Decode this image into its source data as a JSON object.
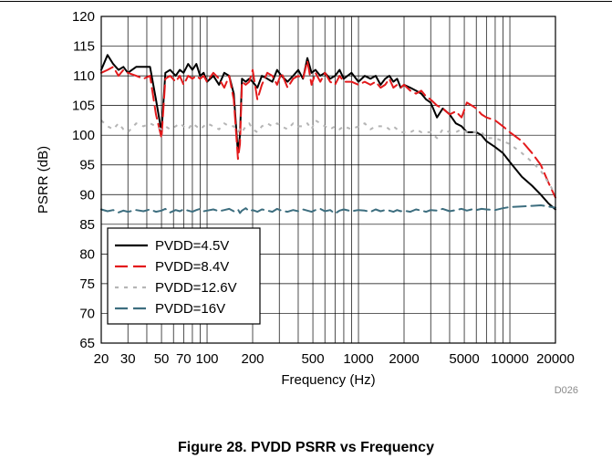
{
  "figure_code": "D026",
  "caption": "Figure 28. PVDD PSRR vs Frequency",
  "chart_data": {
    "type": "line",
    "title": "",
    "xlabel": "Frequency (Hz)",
    "ylabel": "PSRR (dB)",
    "x_scale": "log",
    "xlim": [
      20,
      20000
    ],
    "ylim": [
      65,
      120
    ],
    "grid": true,
    "legend_position": "bottom-left",
    "x_ticks": [
      20,
      30,
      50,
      70,
      100,
      200,
      500,
      1000,
      2000,
      5000,
      10000,
      20000
    ],
    "x_tick_labels": [
      "20",
      "30",
      "50",
      "70",
      "100",
      "200",
      "500",
      "1000",
      "2000",
      "5000",
      "10000",
      "20000"
    ],
    "y_ticks": [
      65,
      70,
      75,
      80,
      85,
      90,
      95,
      100,
      105,
      110,
      115,
      120
    ],
    "series": [
      {
        "name": "PVDD=4.5V",
        "color": "#000000",
        "style": "solid",
        "x": [
          20,
          22,
          24,
          26,
          28,
          30,
          34,
          38,
          42,
          46,
          50,
          53,
          57,
          62,
          66,
          70,
          75,
          80,
          85,
          90,
          95,
          100,
          110,
          120,
          130,
          140,
          150,
          160,
          165,
          170,
          180,
          190,
          200,
          215,
          230,
          250,
          270,
          290,
          310,
          340,
          370,
          400,
          430,
          460,
          490,
          520,
          560,
          600,
          650,
          700,
          750,
          800,
          900,
          1000,
          1100,
          1200,
          1300,
          1400,
          1500,
          1600,
          1700,
          1800,
          1900,
          2000,
          2200,
          2400,
          2600,
          2800,
          3000,
          3300,
          3600,
          4000,
          4400,
          4800,
          5200,
          5600,
          6000,
          6500,
          7000,
          8000,
          9000,
          10000,
          12000,
          14000,
          16000,
          18000,
          20000
        ],
        "values": [
          111,
          113.5,
          112,
          111,
          111.5,
          110.5,
          111.5,
          111.5,
          111.5,
          106,
          100.5,
          110.5,
          111,
          110,
          111,
          110.5,
          112,
          111,
          112,
          110,
          110.5,
          109,
          110,
          108.5,
          110.5,
          110,
          107,
          97,
          100,
          109.5,
          109,
          109.5,
          109,
          108,
          110,
          109.5,
          109,
          111,
          110,
          109,
          110,
          111,
          109.5,
          113,
          110.5,
          111,
          110,
          110.5,
          109.5,
          110,
          111,
          109.5,
          110.5,
          109,
          110,
          109.5,
          110,
          108.5,
          109.5,
          110,
          109,
          109.5,
          108,
          108.5,
          108,
          107.5,
          107,
          106,
          105.5,
          103,
          104.5,
          103.5,
          102,
          101.5,
          100.5,
          100.5,
          100.5,
          100,
          99,
          98,
          97,
          95.5,
          93,
          91.5,
          90,
          88.5,
          87.5
        ]
      },
      {
        "name": "PVDD=8.4V",
        "color": "#e31a1c",
        "style": "dashed",
        "x": [
          20,
          22,
          24,
          26,
          28,
          30,
          34,
          38,
          42,
          46,
          50,
          53,
          57,
          62,
          66,
          70,
          75,
          80,
          85,
          90,
          95,
          100,
          110,
          120,
          130,
          140,
          150,
          160,
          165,
          170,
          180,
          190,
          200,
          215,
          230,
          250,
          270,
          290,
          310,
          340,
          370,
          400,
          430,
          460,
          490,
          520,
          560,
          600,
          650,
          700,
          750,
          800,
          900,
          1000,
          1100,
          1200,
          1300,
          1400,
          1500,
          1600,
          1700,
          1800,
          1900,
          2000,
          2200,
          2400,
          2600,
          2800,
          3000,
          3300,
          3600,
          4000,
          4400,
          4800,
          5200,
          5600,
          6000,
          6500,
          7000,
          8000,
          9000,
          10000,
          12000,
          14000,
          16000,
          18000,
          20000
        ],
        "values": [
          110.5,
          111,
          111.5,
          110,
          111,
          110.5,
          110,
          109.5,
          110,
          103.5,
          99.5,
          109.5,
          110,
          109,
          110,
          108.5,
          110,
          109.5,
          110,
          109.5,
          110,
          109,
          110.5,
          109.5,
          108,
          110,
          106,
          96,
          98.5,
          109,
          108.5,
          109,
          111,
          106,
          108.5,
          110.5,
          110,
          108.5,
          110.5,
          108,
          109.5,
          110,
          109.5,
          112.5,
          108.5,
          110.5,
          109,
          110.5,
          109,
          108.5,
          110,
          109,
          109,
          108.5,
          109,
          108.5,
          109,
          108,
          108.5,
          109.5,
          108,
          108.5,
          108,
          108.5,
          107.5,
          107,
          107.5,
          106.5,
          106,
          105,
          104.5,
          103.5,
          104,
          103,
          105.5,
          105,
          104.5,
          103.5,
          103,
          102.5,
          101.5,
          100.5,
          99,
          97,
          95,
          92,
          89.5
        ]
      },
      {
        "name": "PVDD=12.6V",
        "color": "#b5b5b5",
        "style": "dotted",
        "x": [
          20,
          22,
          24,
          26,
          28,
          30,
          34,
          38,
          42,
          46,
          50,
          53,
          57,
          62,
          66,
          70,
          75,
          80,
          85,
          90,
          95,
          100,
          110,
          120,
          130,
          140,
          150,
          160,
          165,
          170,
          180,
          190,
          200,
          215,
          230,
          250,
          270,
          290,
          310,
          340,
          370,
          400,
          430,
          460,
          490,
          520,
          560,
          600,
          650,
          700,
          750,
          800,
          900,
          1000,
          1100,
          1200,
          1300,
          1400,
          1500,
          1600,
          1700,
          1800,
          1900,
          2000,
          2200,
          2400,
          2600,
          2800,
          3000,
          3300,
          3600,
          4000,
          4400,
          4800,
          5200,
          5600,
          6000,
          6500,
          7000,
          8000,
          9000,
          10000,
          12000,
          14000,
          16000,
          18000,
          20000
        ],
        "values": [
          102.5,
          101.5,
          101,
          102,
          101,
          100.5,
          102,
          101.5,
          102,
          101.5,
          101,
          101.5,
          101,
          101.5,
          102,
          101.5,
          101,
          102,
          101.5,
          101,
          101.5,
          102,
          101.5,
          101,
          102,
          101.5,
          101.5,
          100.5,
          101,
          100.5,
          101.5,
          102,
          101,
          100.5,
          101.5,
          102,
          101.5,
          102,
          101.5,
          101,
          102,
          101.5,
          101.5,
          102,
          101,
          102.5,
          102,
          101.5,
          101,
          101.5,
          101,
          101.5,
          101,
          101.5,
          102,
          101,
          101.5,
          101.5,
          101.5,
          101,
          101.5,
          101,
          100.5,
          100.5,
          100.5,
          101,
          100.5,
          100.5,
          100.5,
          99.5,
          101,
          100.5,
          100.5,
          101,
          100.5,
          100.5,
          100.5,
          100.5,
          99.5,
          99.5,
          99,
          98.5,
          97,
          95.5,
          94,
          92,
          90
        ]
      },
      {
        "name": "PVDD=16V",
        "color": "#3d6e7f",
        "style": "dashed",
        "x": [
          20,
          22,
          24,
          26,
          28,
          30,
          34,
          38,
          42,
          46,
          50,
          53,
          57,
          62,
          66,
          70,
          75,
          80,
          85,
          90,
          95,
          100,
          110,
          120,
          130,
          140,
          150,
          160,
          165,
          170,
          180,
          190,
          200,
          215,
          230,
          250,
          270,
          290,
          310,
          340,
          370,
          400,
          430,
          460,
          490,
          520,
          560,
          600,
          650,
          700,
          750,
          800,
          900,
          1000,
          1100,
          1200,
          1300,
          1400,
          1500,
          1600,
          1700,
          1800,
          1900,
          2000,
          2200,
          2400,
          2600,
          2800,
          3000,
          3300,
          3600,
          4000,
          4400,
          4800,
          5200,
          5600,
          6000,
          6500,
          7000,
          8000,
          9000,
          10000,
          12000,
          14000,
          16000,
          18000,
          20000
        ],
        "values": [
          87.5,
          87.2,
          87.4,
          87,
          87.3,
          87.1,
          87.4,
          87.2,
          87.5,
          87.1,
          87.3,
          87.6,
          87,
          87.4,
          87.2,
          87.5,
          87.3,
          87.1,
          87.4,
          87.6,
          87.2,
          87.3,
          87.5,
          87.2,
          87.4,
          87.6,
          87.2,
          87.5,
          86.9,
          87.3,
          87.7,
          87.2,
          87.4,
          87.1,
          87.5,
          87.3,
          87.1,
          87.6,
          87.3,
          87.1,
          87.4,
          87.2,
          87.5,
          87.3,
          87.1,
          87.4,
          87.6,
          87.2,
          87.4,
          86.8,
          87.3,
          87.5,
          87.2,
          87.4,
          87.3,
          87.1,
          87.5,
          87.2,
          87.4,
          87.3,
          87.1,
          87.4,
          87.2,
          87.3,
          87.1,
          87.5,
          87.3,
          87.1,
          87.4,
          87.3,
          87.6,
          87.2,
          87.4,
          87.6,
          87.3,
          87.5,
          87.4,
          87.6,
          87.5,
          87.4,
          87.7,
          87.9,
          88,
          88.1,
          88.2,
          88,
          87.8
        ]
      }
    ]
  }
}
